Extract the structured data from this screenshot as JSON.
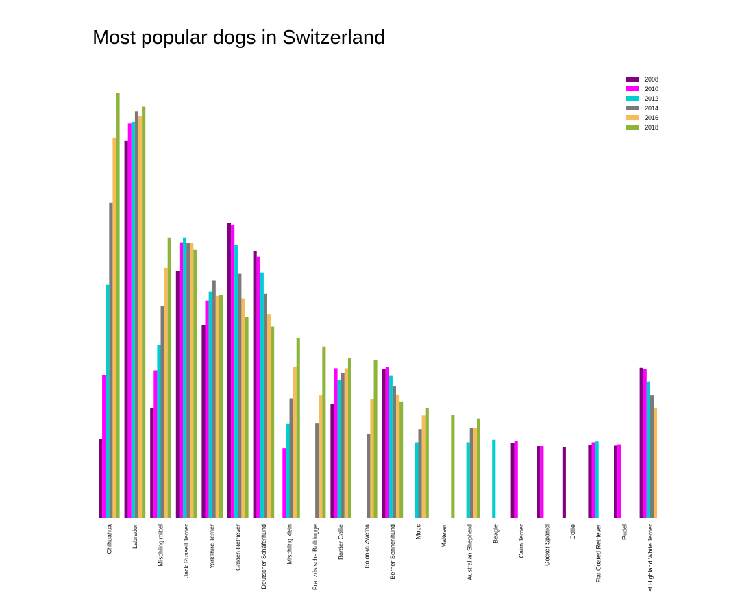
{
  "chart_data": {
    "type": "bar",
    "title": "Most popular dogs in Switzerland",
    "xlabel": "",
    "ylabel": "",
    "ylim": [
      0,
      100
    ],
    "grid": false,
    "axes_visible": false,
    "legend_position": "top-right",
    "categories": [
      "Chihuahua",
      "Labrador",
      "Mischling mittel",
      "Jack Russell Terrier",
      "Yorkshire Terrier",
      "Golden Retriever",
      "Deutscher Schäferhund",
      "Mischling klein",
      "Französische Bulldogge",
      "Border Collie",
      "Bolonka Zwetna",
      "Berner Sennenhund",
      "Mops",
      "Malteser",
      "Australian Shepherd",
      "Beagle",
      "Cairn Terrier",
      "Cocker Spaniel",
      "Collie",
      "Flat Coated Retriever",
      "Pudel",
      "West Highland White Terrier"
    ],
    "series": [
      {
        "name": "2008",
        "color": "#800080",
        "values": [
          18.6,
          88.6,
          25.8,
          58,
          45.4,
          69.3,
          62.7,
          null,
          null,
          26.8,
          null,
          35.1,
          null,
          null,
          null,
          null,
          17.7,
          16.9,
          16.6,
          17.2,
          17,
          35.3
        ]
      },
      {
        "name": "2010",
        "color": "#ff00ff",
        "values": [
          33.5,
          92.7,
          34.7,
          64.8,
          51.1,
          68.9,
          61.4,
          16.4,
          null,
          35.2,
          null,
          35.5,
          null,
          null,
          null,
          null,
          18.1,
          16.9,
          null,
          17.8,
          17.3,
          35.1
        ]
      },
      {
        "name": "2012",
        "color": "#00ced1",
        "values": [
          54.8,
          93.1,
          40.6,
          65.9,
          53.2,
          64.1,
          57.7,
          22.1,
          null,
          32.4,
          null,
          33.4,
          17.8,
          null,
          17.8,
          18.4,
          null,
          null,
          null,
          18,
          null,
          32.1
        ]
      },
      {
        "name": "2014",
        "color": "#7a7a7a",
        "values": [
          74.1,
          95.6,
          49.8,
          64.7,
          55.8,
          57.4,
          52.7,
          28.1,
          22.2,
          34.1,
          19.8,
          30.9,
          20.9,
          null,
          21.1,
          null,
          null,
          null,
          null,
          null,
          null,
          28.8
        ]
      },
      {
        "name": "2016",
        "color": "#f5bc5a",
        "values": [
          89.4,
          94.4,
          58.8,
          64.6,
          52.2,
          51.6,
          47.8,
          35.6,
          28.8,
          35.2,
          27.9,
          29,
          24.1,
          null,
          21.1,
          null,
          null,
          null,
          null,
          null,
          null,
          25.8
        ]
      },
      {
        "name": "2018",
        "color": "#8db53c",
        "values": [
          100,
          96.7,
          65.9,
          63,
          52.5,
          47.2,
          45,
          42.2,
          40.3,
          37.6,
          37.1,
          27.4,
          25.8,
          24.3,
          23.4,
          null,
          null,
          null,
          null,
          null,
          null,
          null
        ]
      }
    ]
  }
}
